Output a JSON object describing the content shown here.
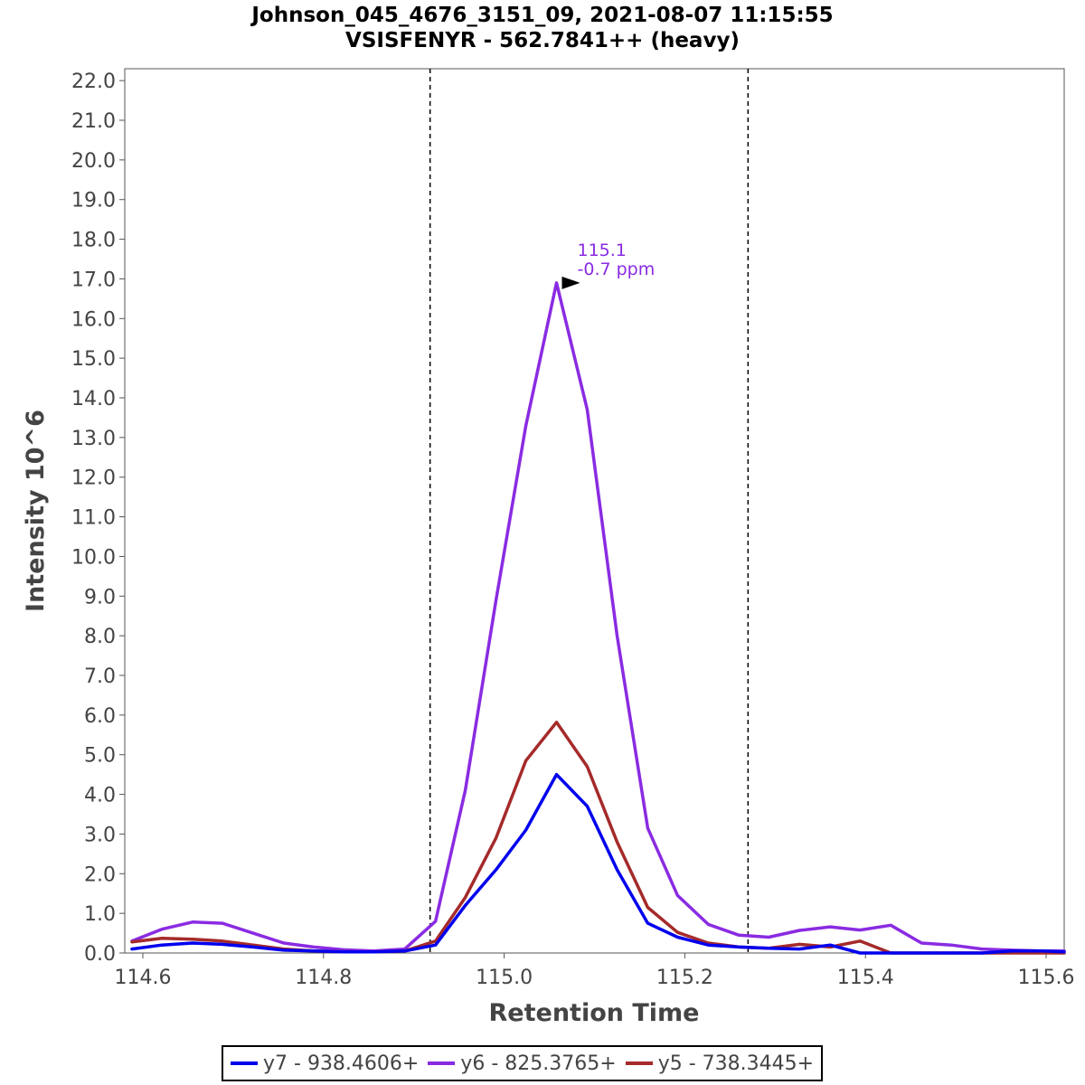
{
  "chart_data": {
    "type": "line",
    "title": "Johnson_045_4676_3151_09, 2021-08-07 11:15:55",
    "subtitle": "VSISFENYR - 562.7841++ (heavy)",
    "xlabel": "Retention Time",
    "ylabel": "Intensity 10^6",
    "xlim": [
      114.58,
      115.62
    ],
    "ylim": [
      0,
      22.3
    ],
    "xticks": [
      "114.6",
      "114.8",
      "115.0",
      "115.2",
      "115.4",
      "115.6"
    ],
    "yticks": [
      "0.0",
      "1.0",
      "2.0",
      "3.0",
      "4.0",
      "5.0",
      "6.0",
      "7.0",
      "8.0",
      "9.0",
      "10.0",
      "11.0",
      "12.0",
      "13.0",
      "14.0",
      "15.0",
      "16.0",
      "17.0",
      "18.0",
      "19.0",
      "20.0",
      "21.0",
      "22.0"
    ],
    "boundaries": [
      114.918,
      115.27
    ],
    "x": [
      114.588,
      114.621,
      114.655,
      114.688,
      114.722,
      114.756,
      114.789,
      114.823,
      114.856,
      114.89,
      114.924,
      114.957,
      114.991,
      115.024,
      115.058,
      115.092,
      115.125,
      115.159,
      115.192,
      115.226,
      115.26,
      115.293,
      115.327,
      115.361,
      115.394,
      115.428,
      115.462,
      115.495,
      115.529,
      115.562,
      115.596,
      115.62
    ],
    "series": [
      {
        "name": "y7 - 938.4606+",
        "color": "#0000ee",
        "values": [
          0.1,
          0.2,
          0.25,
          0.22,
          0.15,
          0.07,
          0.05,
          0.03,
          0.03,
          0.05,
          0.2,
          1.2,
          2.1,
          3.1,
          4.5,
          3.7,
          2.1,
          0.75,
          0.4,
          0.2,
          0.15,
          0.12,
          0.1,
          0.2,
          0.0,
          0.0,
          0.0,
          0.0,
          0.0,
          0.05,
          0.05,
          0.03
        ]
      },
      {
        "name": "y6 - 825.3765+",
        "color": "#8a2be2",
        "values": [
          0.3,
          0.6,
          0.78,
          0.75,
          0.5,
          0.25,
          0.15,
          0.08,
          0.05,
          0.1,
          0.8,
          4.1,
          8.9,
          13.3,
          16.9,
          13.7,
          8.0,
          3.15,
          1.45,
          0.72,
          0.45,
          0.4,
          0.57,
          0.66,
          0.58,
          0.7,
          0.25,
          0.2,
          0.1,
          0.07,
          0.05,
          0.05
        ]
      },
      {
        "name": "y5 - 738.3445+",
        "color": "#a52a2a",
        "values": [
          0.28,
          0.37,
          0.35,
          0.3,
          0.2,
          0.1,
          0.05,
          0.03,
          0.03,
          0.05,
          0.3,
          1.4,
          2.9,
          4.85,
          5.82,
          4.7,
          2.8,
          1.15,
          0.52,
          0.25,
          0.15,
          0.12,
          0.22,
          0.15,
          0.3,
          0.0,
          0.0,
          0.0,
          0.0,
          0.0,
          0.0,
          0.0
        ]
      }
    ],
    "annotation": {
      "x": 115.092,
      "y": 16.9,
      "line1": "115.1",
      "line2": "-0.7 ppm",
      "color": "#8a2be2"
    },
    "legend_position": "bottom-center"
  }
}
